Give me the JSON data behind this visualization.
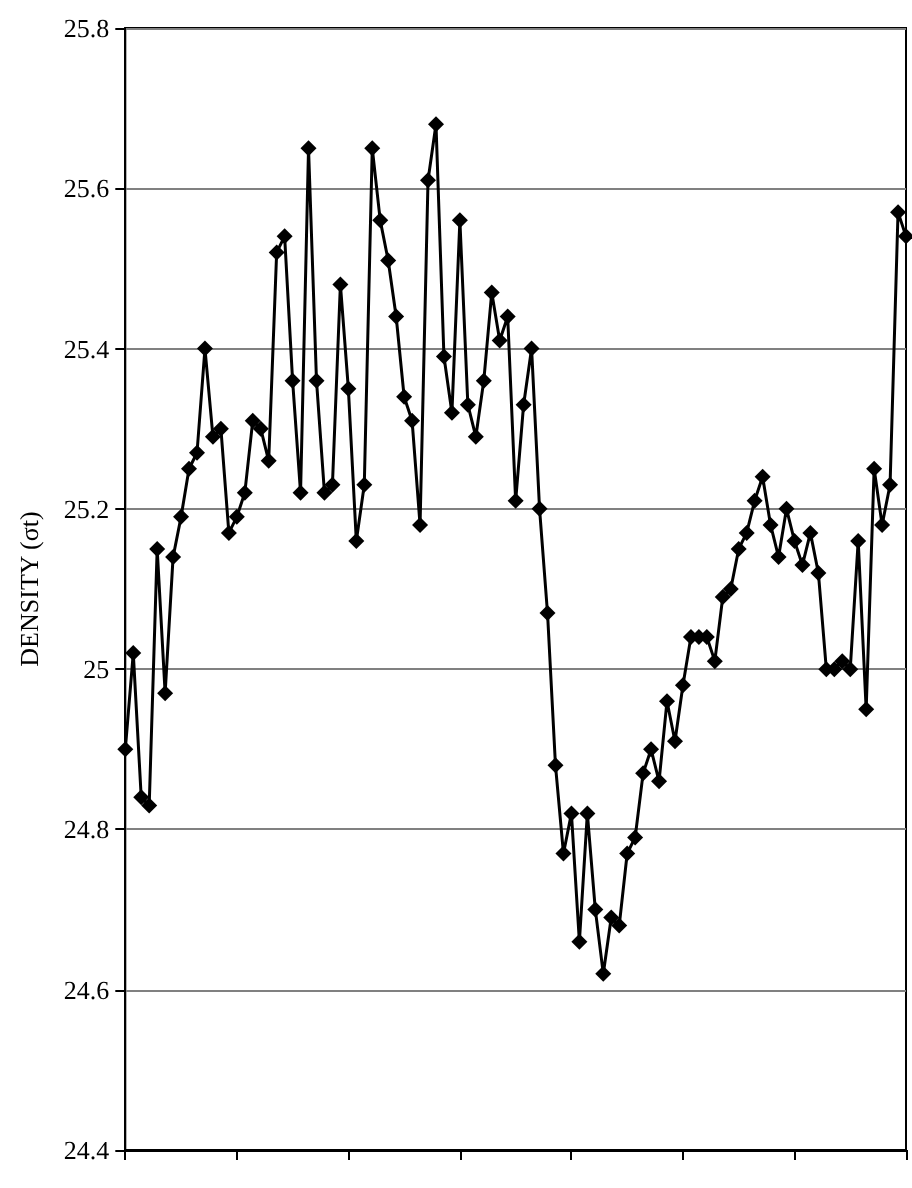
{
  "chart_data": {
    "type": "line",
    "ylabel": "DENSITY (σt)",
    "categories": [
      null,
      null,
      null,
      null,
      null,
      null,
      null,
      null,
      null,
      null,
      null,
      null,
      null,
      null,
      null,
      null,
      null,
      null,
      null,
      null,
      null,
      null,
      null,
      null,
      null,
      null,
      null,
      null,
      null,
      null,
      null,
      null,
      null,
      null,
      null,
      null,
      null,
      null,
      null,
      null,
      null,
      null,
      null,
      null,
      null,
      null,
      null,
      null,
      null,
      null,
      null,
      null,
      null,
      null,
      null,
      null,
      null,
      null,
      null,
      null,
      null,
      null,
      null,
      null,
      null,
      null,
      null,
      null,
      null,
      null,
      null,
      null,
      null,
      null,
      null,
      null,
      null,
      null,
      null,
      null,
      null,
      null,
      null,
      null,
      null,
      null,
      null,
      null,
      null,
      null,
      null,
      null,
      null,
      null,
      null,
      null,
      null,
      null,
      null
    ],
    "ylim": [
      24.4,
      25.8
    ],
    "yticks": [
      24.4,
      24.6,
      24.8,
      25,
      25.2,
      25.4,
      25.6,
      25.8
    ],
    "tick_labels": "y",
    "grid": "y",
    "marker": "diamond",
    "line_style": "solid",
    "series": [
      {
        "color": "#000000",
        "values": [
          24.9,
          25.02,
          24.84,
          24.83,
          25.15,
          24.97,
          25.14,
          25.19,
          25.25,
          25.27,
          25.4,
          25.29,
          25.3,
          25.17,
          25.19,
          25.22,
          25.31,
          25.3,
          25.26,
          25.52,
          25.54,
          25.36,
          25.22,
          25.65,
          25.36,
          25.22,
          25.23,
          25.48,
          25.35,
          25.16,
          25.23,
          25.65,
          25.56,
          25.51,
          25.44,
          25.34,
          25.31,
          25.18,
          25.61,
          25.68,
          25.39,
          25.32,
          25.56,
          25.33,
          25.29,
          25.36,
          25.47,
          25.41,
          25.44,
          25.21,
          25.33,
          25.4,
          25.2,
          25.07,
          24.88,
          24.77,
          24.82,
          24.66,
          24.82,
          24.7,
          24.62,
          24.69,
          24.68,
          24.77,
          24.79,
          24.87,
          24.9,
          24.86,
          24.96,
          24.91,
          24.98,
          25.04,
          25.04,
          25.04,
          25.01,
          25.09,
          25.1,
          25.15,
          25.17,
          25.21,
          25.24,
          25.18,
          25.14,
          25.2,
          25.16,
          25.13,
          25.17,
          25.12,
          25.0,
          25.0,
          25.01,
          25.0,
          25.16,
          24.95,
          25.25,
          25.18,
          25.23,
          25.57,
          25.54
        ]
      }
    ]
  }
}
